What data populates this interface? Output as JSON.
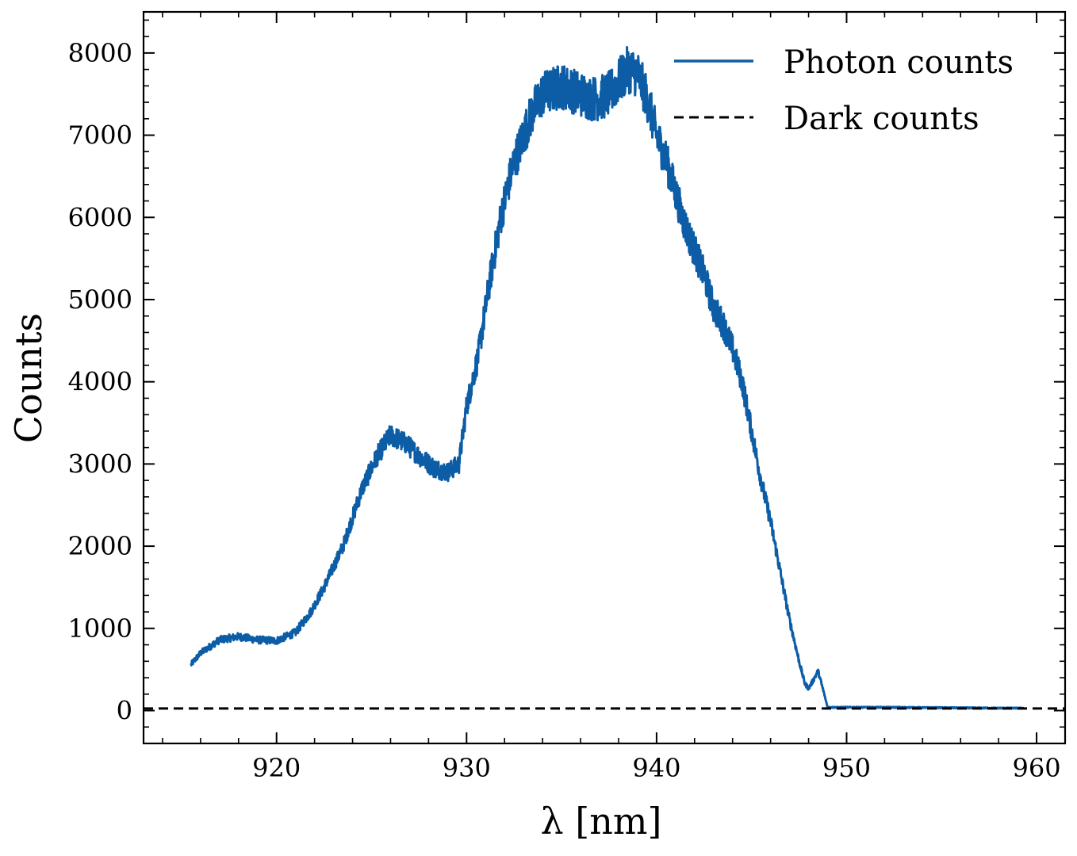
{
  "chart_data": {
    "type": "line",
    "xlabel": "λ [nm]",
    "ylabel": "Counts",
    "xlim": [
      913,
      961.5
    ],
    "ylim": [
      -400,
      8500
    ],
    "x_major_ticks": [
      920,
      930,
      940,
      950,
      960
    ],
    "x_tick_labels": [
      "920",
      "930",
      "940",
      "950",
      "960"
    ],
    "x_minor_step": 2,
    "y_major_ticks": [
      0,
      1000,
      2000,
      3000,
      4000,
      5000,
      6000,
      7000,
      8000
    ],
    "y_tick_labels": [
      "0",
      "1000",
      "2000",
      "3000",
      "4000",
      "5000",
      "6000",
      "7000",
      "8000"
    ],
    "y_minor_step": 200,
    "grid": false,
    "legend_position": "top-right",
    "series": [
      {
        "name": "Photon counts",
        "color": "#0c5da5",
        "style": "solid",
        "noisy": true,
        "x": [
          915.5,
          916,
          917,
          918,
          919,
          920,
          921,
          921.8,
          922.5,
          923.5,
          924.5,
          925.3,
          926,
          926.8,
          927.5,
          928.3,
          929,
          929.6,
          930,
          930.6,
          931.2,
          931.8,
          932.4,
          933,
          933.5,
          934,
          934.5,
          935,
          935.5,
          936,
          936.5,
          937,
          937.5,
          938,
          938.5,
          939,
          939.5,
          940,
          940.5,
          941,
          941.5,
          942,
          942.5,
          943,
          943.5,
          944,
          944.5,
          945,
          945.5,
          946,
          946.5,
          947,
          947.5,
          947.8,
          948,
          948.2,
          948.5,
          948.8,
          949,
          950,
          952,
          955,
          958,
          959.3
        ],
        "values": [
          560,
          700,
          860,
          900,
          860,
          850,
          950,
          1200,
          1500,
          2000,
          2700,
          3100,
          3350,
          3250,
          3100,
          2950,
          2900,
          3000,
          3700,
          4300,
          5200,
          6000,
          6600,
          7000,
          7300,
          7500,
          7550,
          7600,
          7550,
          7500,
          7450,
          7450,
          7500,
          7650,
          7800,
          7750,
          7450,
          7000,
          6700,
          6300,
          5900,
          5600,
          5300,
          4900,
          4700,
          4400,
          4000,
          3400,
          2800,
          2300,
          1700,
          1100,
          600,
          330,
          270,
          350,
          480,
          220,
          40,
          40,
          40,
          35,
          30,
          30
        ]
      },
      {
        "name": "Dark counts",
        "color": "#000000",
        "style": "dashed",
        "x": [
          913,
          961.5
        ],
        "values": [
          25,
          25
        ]
      }
    ]
  }
}
